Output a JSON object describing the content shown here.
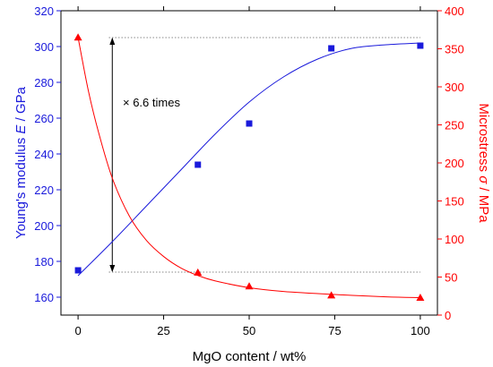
{
  "chart_data": {
    "type": "scatter",
    "title": "",
    "xlabel": "MgO content / wt%",
    "ylabel_left": {
      "prefix": "Young's modulus ",
      "symbol": "E",
      "suffix": " / GPa"
    },
    "ylabel_right": {
      "prefix": "Microstress ",
      "symbol": "σ",
      "suffix": " / MPa"
    },
    "xlim": [
      -5,
      105
    ],
    "ylim_left": [
      150,
      320
    ],
    "ylim_right": [
      0,
      400
    ],
    "x_ticks": [
      0,
      25,
      50,
      75,
      100
    ],
    "y_ticks_left": [
      160,
      180,
      200,
      220,
      240,
      260,
      280,
      300,
      320
    ],
    "y_ticks_right": [
      0,
      50,
      100,
      150,
      200,
      250,
      300,
      350,
      400
    ],
    "grid": false,
    "legend": "none",
    "annotation": "× 6.6 times",
    "reference_levels": {
      "upper_left_axis": 305,
      "lower_left_axis": 174
    },
    "series": [
      {
        "axis": "left",
        "marker": "square",
        "color": "#1a1adb",
        "x": [
          0,
          35,
          50,
          74,
          100
        ],
        "y": [
          175,
          234,
          257,
          299,
          300.5
        ],
        "fit_x": [
          0,
          10,
          20,
          30,
          40,
          50,
          60,
          70,
          80,
          90,
          100
        ],
        "fit_y": [
          172,
          191,
          211,
          231,
          251,
          269,
          283,
          293,
          299,
          301,
          302
        ]
      },
      {
        "axis": "right",
        "marker": "triangle",
        "color": "#ff0000",
        "x": [
          0,
          35,
          50,
          74,
          100
        ],
        "y": [
          365,
          56,
          38,
          26,
          23
        ],
        "fit_x": [
          0,
          3,
          6,
          10,
          15,
          20,
          25,
          30,
          35,
          40,
          50,
          60,
          75,
          90,
          100
        ],
        "fit_y": [
          365,
          295,
          240,
          180,
          130,
          98,
          77,
          62,
          52,
          45,
          36,
          31,
          27,
          24,
          23
        ]
      }
    ]
  }
}
